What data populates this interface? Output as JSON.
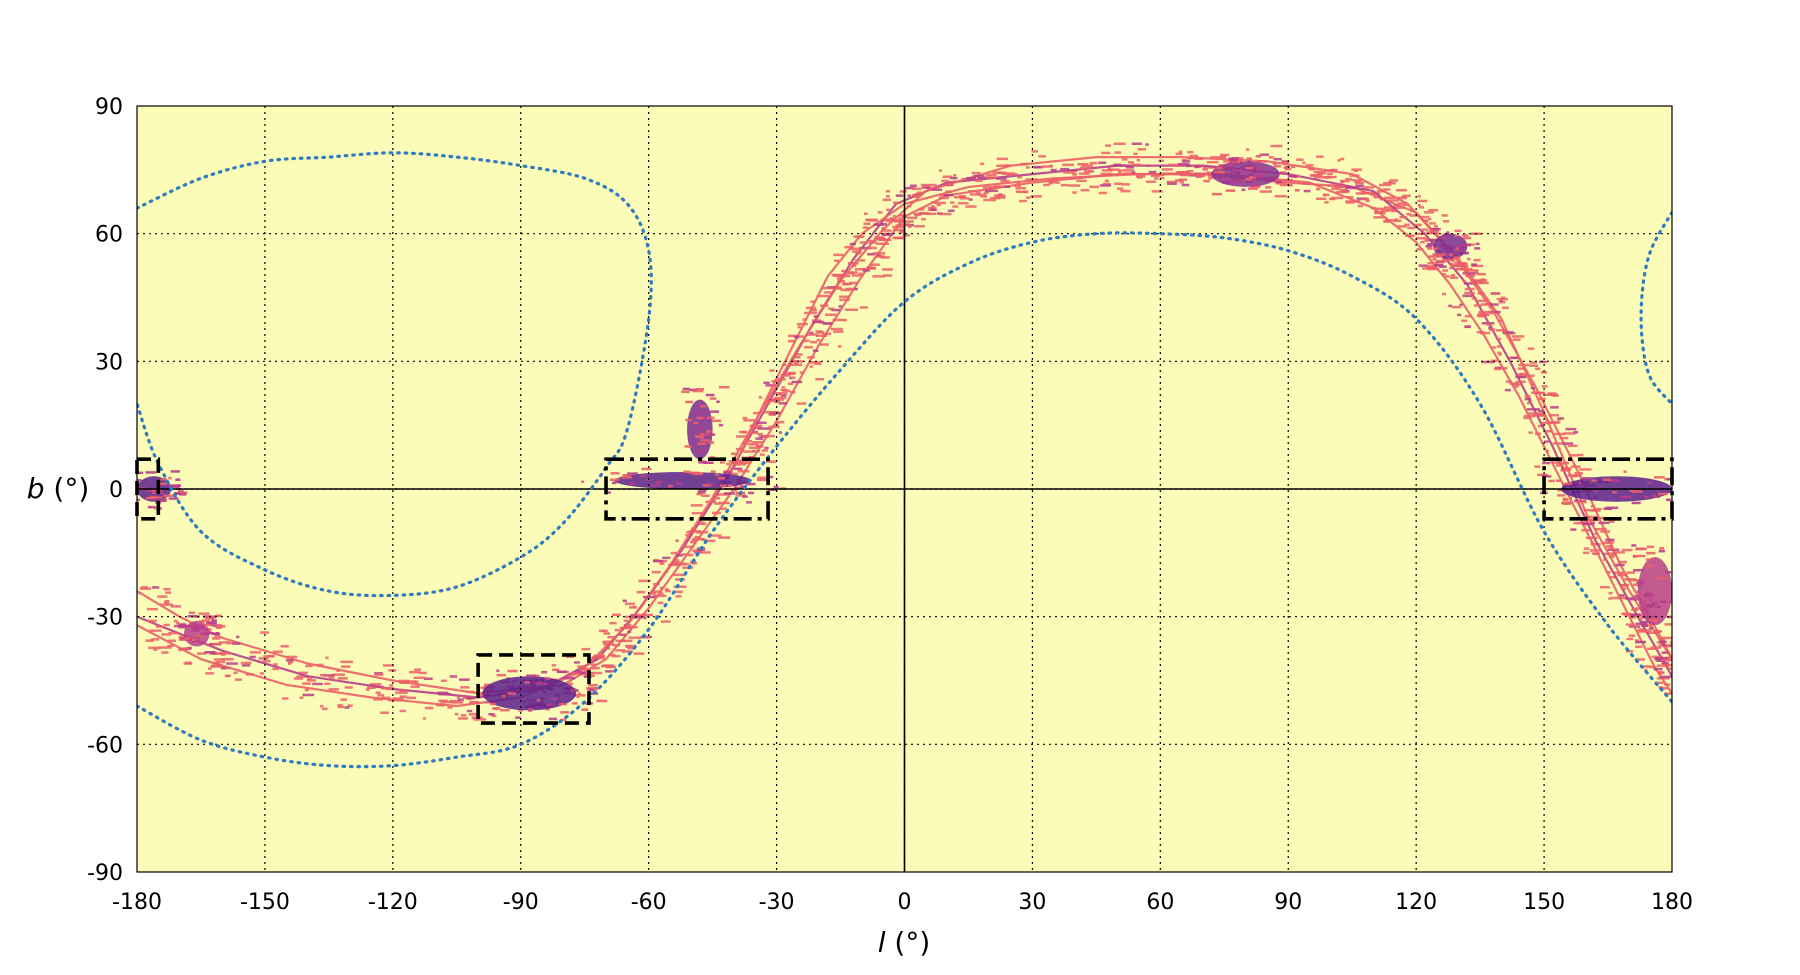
{
  "chart_data": {
    "type": "heatmap",
    "xlabel_var": "l",
    "xlabel_unit": " (°)",
    "ylabel_var": "b",
    "ylabel_unit": " (°)",
    "xlim": [
      -180,
      180
    ],
    "ylim": [
      -90,
      90
    ],
    "xticks": [
      -180,
      -150,
      -120,
      -90,
      -60,
      -30,
      0,
      30,
      60,
      90,
      120,
      150,
      180
    ],
    "yticks": [
      -90,
      -60,
      -30,
      0,
      30,
      60,
      90
    ],
    "grid": true,
    "background_color": "#fafcb8",
    "colors": {
      "low": "#ec5f67",
      "mid": "#b83e8a",
      "high": "#5b1e8c",
      "boundary": "#2e7bbf"
    },
    "reference_lines": {
      "l": 0,
      "b": 0
    },
    "boundary_curves": {
      "lower": [
        [
          -180,
          -51
        ],
        [
          -165,
          -59
        ],
        [
          -150,
          -63
        ],
        [
          -135,
          -65
        ],
        [
          -120,
          -65
        ],
        [
          -105,
          -63
        ],
        [
          -90,
          -60
        ],
        [
          -75,
          -50
        ],
        [
          -60,
          -33
        ],
        [
          -45,
          -10
        ],
        [
          -30,
          10
        ],
        [
          -15,
          28
        ],
        [
          0,
          44
        ],
        [
          15,
          53
        ],
        [
          30,
          58
        ],
        [
          45,
          60
        ],
        [
          60,
          60
        ],
        [
          75,
          59
        ],
        [
          90,
          56
        ],
        [
          105,
          50
        ],
        [
          120,
          40
        ],
        [
          135,
          20
        ],
        [
          150,
          -10
        ],
        [
          165,
          -32
        ],
        [
          180,
          -50
        ]
      ],
      "upper_loop": [
        [
          -180,
          66
        ],
        [
          -165,
          73
        ],
        [
          -150,
          77
        ],
        [
          -135,
          78
        ],
        [
          -120,
          79
        ],
        [
          -105,
          78
        ],
        [
          -90,
          76
        ],
        [
          -75,
          73
        ],
        [
          -65,
          67
        ],
        [
          -60,
          56
        ],
        [
          -60,
          40
        ],
        [
          -65,
          14
        ],
        [
          -70,
          5
        ],
        [
          -80,
          -8
        ],
        [
          -90,
          -16
        ],
        [
          -105,
          -23
        ],
        [
          -120,
          -25
        ],
        [
          -135,
          -24
        ],
        [
          -150,
          -19
        ],
        [
          -165,
          -10
        ],
        [
          -175,
          6
        ],
        [
          -180,
          20
        ]
      ],
      "right_loop": [
        [
          180,
          65
        ],
        [
          175,
          56
        ],
        [
          173,
          46
        ],
        [
          173,
          35
        ],
        [
          175,
          26
        ],
        [
          180,
          20
        ]
      ]
    },
    "boxes": [
      {
        "style": "dashed",
        "l": [
          -180,
          -175
        ],
        "b": [
          -7,
          7
        ]
      },
      {
        "style": "dashdot",
        "l": [
          -70,
          -32
        ],
        "b": [
          -7,
          7
        ]
      },
      {
        "style": "dashdot",
        "l": [
          150,
          180
        ],
        "b": [
          -7,
          7
        ]
      },
      {
        "style": "dashed",
        "l": [
          -100,
          -74
        ],
        "b": [
          -55,
          -39
        ]
      }
    ],
    "streams": [
      {
        "name": "",
        "color": "#ec5f67",
        "points": [
          [
            -180,
            -24
          ],
          [
            -170,
            -30
          ],
          [
            -160,
            -35
          ],
          [
            -140,
            -41
          ],
          [
            -120,
            -45
          ],
          [
            -100,
            -48
          ],
          [
            -80,
            -46
          ],
          [
            -70,
            -40
          ],
          [
            -60,
            -28
          ],
          [
            -50,
            -14
          ],
          [
            -40,
            0
          ],
          [
            -30,
            16
          ],
          [
            -20,
            34
          ],
          [
            -10,
            50
          ],
          [
            0,
            64
          ],
          [
            10,
            69
          ],
          [
            30,
            72
          ],
          [
            50,
            74
          ],
          [
            70,
            74
          ],
          [
            90,
            72
          ],
          [
            105,
            71
          ],
          [
            120,
            65
          ],
          [
            130,
            54
          ],
          [
            140,
            40
          ],
          [
            150,
            18
          ],
          [
            160,
            -6
          ],
          [
            170,
            -24
          ],
          [
            180,
            -40
          ]
        ]
      },
      {
        "name": "",
        "color": "#b83e8a",
        "points": [
          [
            -180,
            -30
          ],
          [
            -160,
            -38
          ],
          [
            -140,
            -44
          ],
          [
            -120,
            -47
          ],
          [
            -100,
            -49
          ],
          [
            -85,
            -47
          ],
          [
            -72,
            -40
          ],
          [
            -62,
            -28
          ],
          [
            -52,
            -14
          ],
          [
            -42,
            2
          ],
          [
            -32,
            20
          ],
          [
            -22,
            38
          ],
          [
            -12,
            54
          ],
          [
            -2,
            67
          ],
          [
            10,
            72
          ],
          [
            30,
            74
          ],
          [
            50,
            76
          ],
          [
            70,
            76
          ],
          [
            90,
            74
          ],
          [
            110,
            70
          ],
          [
            122,
            60
          ],
          [
            132,
            48
          ],
          [
            142,
            30
          ],
          [
            152,
            10
          ],
          [
            162,
            -12
          ],
          [
            172,
            -30
          ],
          [
            180,
            -44
          ]
        ]
      },
      {
        "name": "",
        "color": "#ec5f67",
        "points": [
          [
            -180,
            -32
          ],
          [
            -165,
            -40
          ],
          [
            -145,
            -46
          ],
          [
            -125,
            -49
          ],
          [
            -105,
            -51
          ],
          [
            -90,
            -49
          ],
          [
            -76,
            -43
          ],
          [
            -65,
            -32
          ],
          [
            -55,
            -18
          ],
          [
            -45,
            -2
          ],
          [
            -35,
            16
          ],
          [
            -25,
            33
          ],
          [
            -15,
            49
          ],
          [
            -5,
            61
          ],
          [
            5,
            70
          ],
          [
            25,
            76
          ],
          [
            45,
            78
          ],
          [
            65,
            78
          ],
          [
            85,
            77
          ],
          [
            105,
            74
          ],
          [
            118,
            67
          ],
          [
            128,
            56
          ],
          [
            138,
            42
          ],
          [
            148,
            24
          ],
          [
            158,
            4
          ],
          [
            168,
            -18
          ],
          [
            178,
            -36
          ],
          [
            180,
            -40
          ]
        ]
      },
      {
        "name": "",
        "color": "#ec5f67",
        "points": [
          [
            -40,
            5
          ],
          [
            -33,
            20
          ],
          [
            -25,
            36
          ],
          [
            -18,
            50
          ],
          [
            -10,
            60
          ],
          [
            0,
            67
          ],
          [
            15,
            71
          ],
          [
            35,
            73
          ],
          [
            55,
            74
          ],
          [
            75,
            74
          ],
          [
            95,
            72
          ],
          [
            110,
            66
          ],
          [
            120,
            58
          ],
          [
            128,
            48
          ],
          [
            136,
            36
          ],
          [
            144,
            22
          ],
          [
            152,
            6
          ],
          [
            160,
            -10
          ],
          [
            168,
            -26
          ],
          [
            176,
            -42
          ],
          [
            180,
            -48
          ]
        ]
      }
    ],
    "clusters": [
      {
        "l": -176,
        "b": 0,
        "dl": 4,
        "db": 3,
        "color": "#5b1e8c"
      },
      {
        "l": -52,
        "b": 2,
        "dl": 16,
        "db": 2,
        "color": "#5b1e8c"
      },
      {
        "l": -48,
        "b": 14,
        "dl": 3,
        "db": 7,
        "color": "#7a2a93"
      },
      {
        "l": 167,
        "b": 0,
        "dl": 13,
        "db": 3,
        "color": "#5b1e8c"
      },
      {
        "l": -88,
        "b": -48,
        "dl": 11,
        "db": 4,
        "color": "#5b1e8c"
      },
      {
        "l": 128,
        "b": 57,
        "dl": 4,
        "db": 3,
        "color": "#7a2a93"
      },
      {
        "l": 80,
        "b": 74,
        "dl": 8,
        "db": 3,
        "color": "#8a3090"
      },
      {
        "l": -166,
        "b": -34,
        "dl": 3,
        "db": 3,
        "color": "#b83e8a"
      },
      {
        "l": 176,
        "b": -24,
        "dl": 4,
        "db": 8,
        "color": "#b83e8a"
      }
    ]
  }
}
